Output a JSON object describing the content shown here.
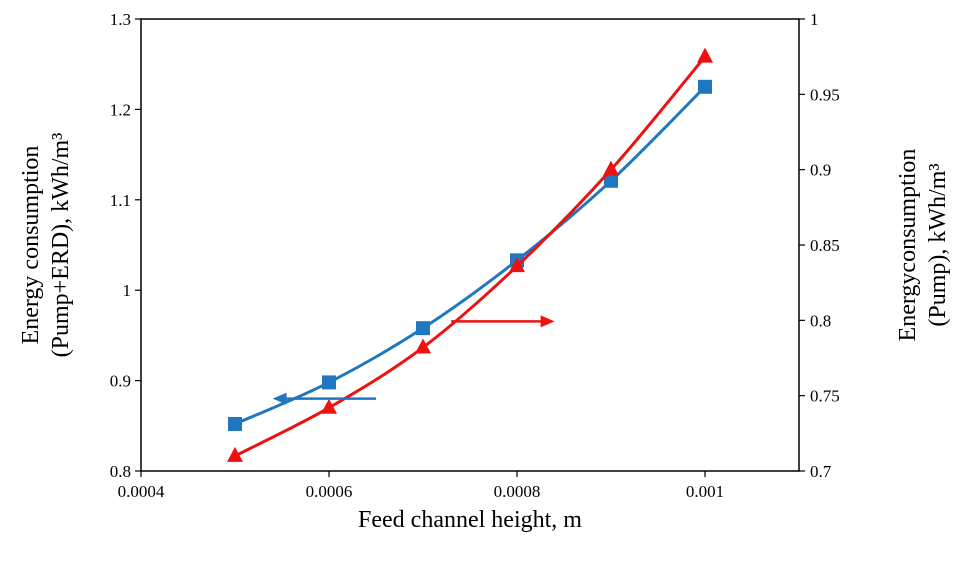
{
  "chart_data": {
    "type": "line",
    "title": "",
    "xlabel": "Feed channel height, m",
    "ylabel_left_lines": [
      "Energy consumption",
      "(Pump+ERD), kWh/m³"
    ],
    "ylabel_right_lines": [
      "Energyconsumption",
      "(Pump), kWh/m³"
    ],
    "xlim": [
      0.0004,
      0.0011
    ],
    "ylim_left": [
      0.8,
      1.3
    ],
    "ylim_right": [
      0.7,
      1.0
    ],
    "x_ticks": [
      "0.0004",
      "0.0006",
      "0.0008",
      "0.001"
    ],
    "y_left_ticks": [
      "0.8",
      "0.9",
      "1",
      "1.1",
      "1.2",
      "1.3"
    ],
    "y_right_ticks": [
      "0.7",
      "0.75",
      "0.8",
      "0.85",
      "0.9",
      "0.95",
      "1"
    ],
    "grid": false,
    "legend": "none",
    "series": [
      {
        "axis": "left",
        "marker": "square",
        "color": "#1f77c0",
        "x": [
          0.0005,
          0.0006,
          0.0007,
          0.0008,
          0.0009,
          0.001
        ],
        "values": [
          0.852,
          0.898,
          0.958,
          1.033,
          1.121,
          1.225
        ]
      },
      {
        "axis": "right",
        "marker": "triangle",
        "color": "#ee1111",
        "x": [
          0.0005,
          0.0006,
          0.0007,
          0.0008,
          0.0009,
          0.001
        ],
        "values": [
          0.71,
          0.742,
          0.782,
          0.836,
          0.9,
          0.975
        ]
      }
    ],
    "annotations": [
      {
        "type": "arrow",
        "direction": "left",
        "points_to": "left axis",
        "color": "#1f77c0"
      },
      {
        "type": "arrow",
        "direction": "right",
        "points_to": "right axis",
        "color": "#ee1111"
      }
    ]
  }
}
